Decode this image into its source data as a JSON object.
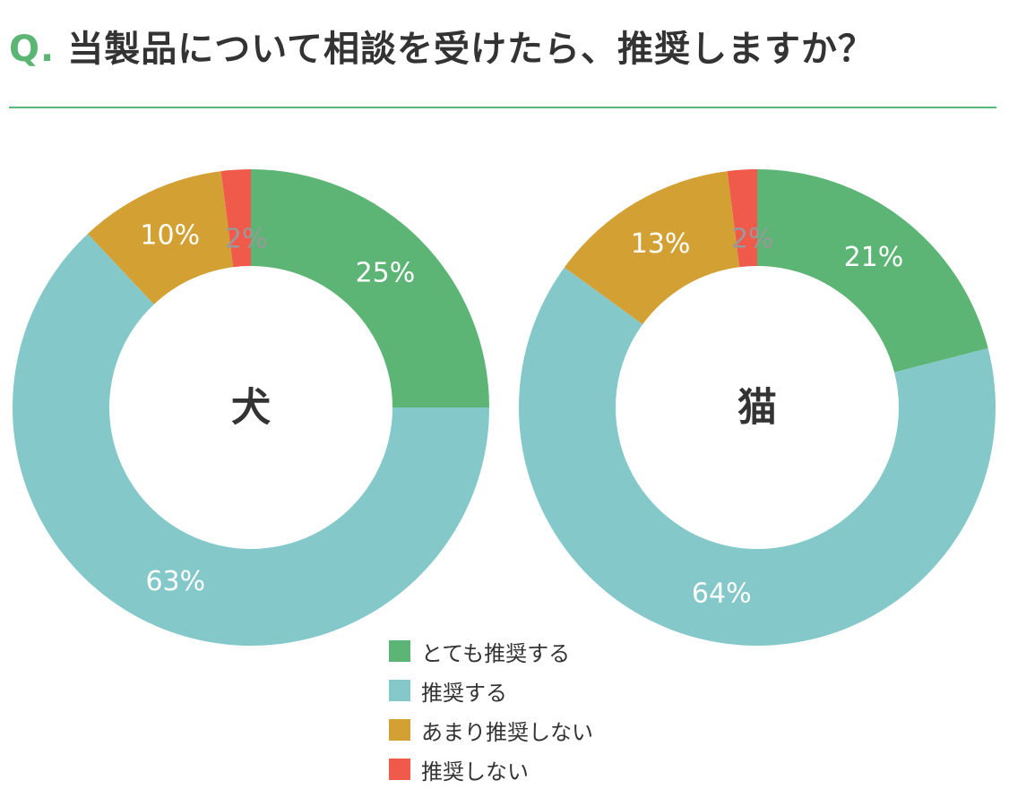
{
  "header": {
    "q_marker": "Q.",
    "question": "当製品について相談を受けたら、推奨しますか？"
  },
  "colors": {
    "accent": "#5cb574"
  },
  "legend": [
    {
      "label": "とても推奨する",
      "color": "#5cb574"
    },
    {
      "label": "推奨する",
      "color": "#84c8ca"
    },
    {
      "label": "あまり推奨しない",
      "color": "#d3a033"
    },
    {
      "label": "推奨しない",
      "color": "#f05a4a"
    }
  ],
  "chart_data": [
    {
      "type": "pie",
      "title": "犬",
      "categories": [
        "とても推奨する",
        "推奨する",
        "あまり推奨しない",
        "推奨しない"
      ],
      "values": [
        25,
        63,
        10,
        2
      ],
      "labels": [
        "25%",
        "63%",
        "10%",
        "2%"
      ]
    },
    {
      "type": "pie",
      "title": "猫",
      "categories": [
        "とても推奨する",
        "推奨する",
        "あまり推奨しない",
        "推奨しない"
      ],
      "values": [
        21,
        64,
        13,
        2
      ],
      "labels": [
        "21%",
        "64%",
        "13%",
        "2%"
      ]
    }
  ]
}
